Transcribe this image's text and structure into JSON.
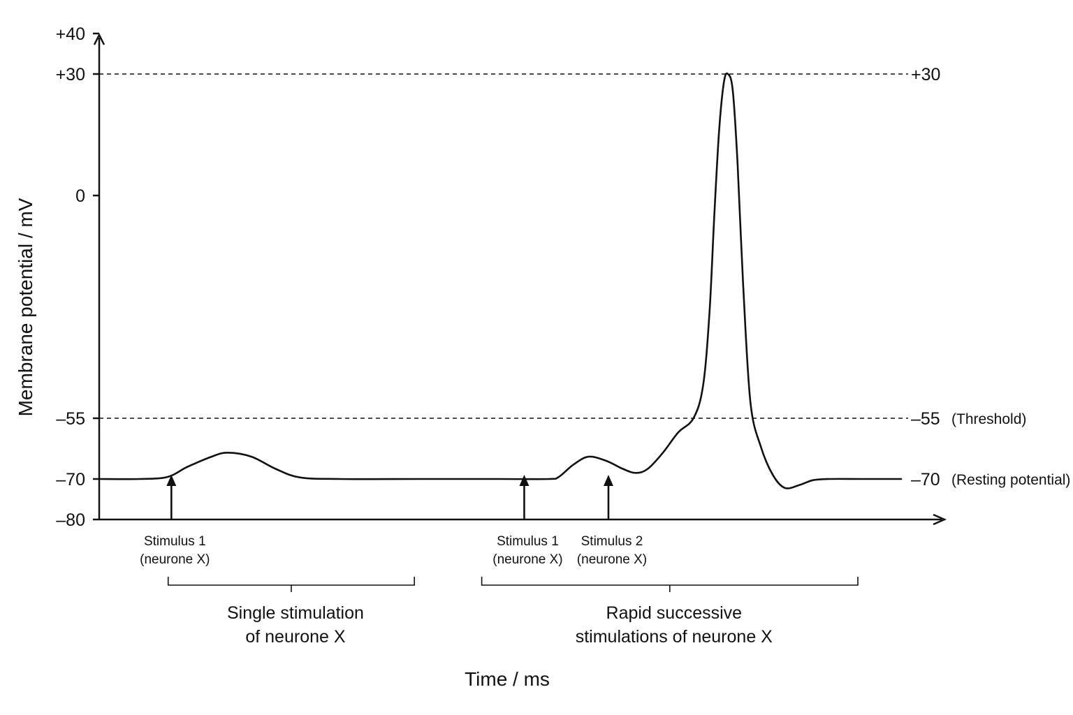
{
  "chart_data": {
    "type": "line",
    "title": "",
    "xlabel": "Time / ms",
    "ylabel": "Membrane potential / mV",
    "x_range": [
      0,
      100
    ],
    "ylim": [
      -80,
      40
    ],
    "y_ticks": [
      {
        "value": 40,
        "label": "+40"
      },
      {
        "value": 30,
        "label": "+30"
      },
      {
        "value": 0,
        "label": "0"
      },
      {
        "value": -55,
        "label": "–55"
      },
      {
        "value": -70,
        "label": "–70"
      },
      {
        "value": -80,
        "label": "–80"
      }
    ],
    "reference_lines": [
      {
        "value": 30,
        "label": "+30",
        "note": "",
        "dashed": true
      },
      {
        "value": -55,
        "label": "–55",
        "note": "(Threshold)",
        "dashed": true
      },
      {
        "value": -70,
        "label": "–70",
        "note": "(Resting potential)",
        "dashed": false
      }
    ],
    "series": [
      {
        "x": [
          0,
          5,
          8.5,
          11,
          14,
          16,
          19,
          22,
          25,
          30,
          40,
          50,
          56,
          57.3,
          59.1,
          61,
          63.2,
          65.3,
          66.9,
          68.4,
          70.3,
          72.2,
          74.1,
          75.3,
          76.1,
          76.7,
          77.3,
          77.9,
          78.4,
          79,
          79.6,
          80.3,
          81.2,
          82.5,
          84,
          85.5,
          87.3,
          89,
          91,
          95,
          100
        ],
        "y": [
          -70,
          -70,
          -69.5,
          -67,
          -64.5,
          -63.5,
          -64.5,
          -67.5,
          -69.6,
          -70,
          -70,
          -70,
          -70,
          -69.5,
          -66.5,
          -64.5,
          -65.5,
          -67.5,
          -68.5,
          -67.5,
          -63.5,
          -58.5,
          -55,
          -47,
          -29,
          -5,
          16,
          28,
          30,
          26,
          8,
          -22,
          -51,
          -62,
          -69,
          -72.2,
          -71.5,
          -70.3,
          -70,
          -70,
          -70
        ]
      }
    ],
    "stimuli": [
      {
        "x": 9,
        "label_line1": "Stimulus 1",
        "label_line2": "(neurone X)"
      },
      {
        "x": 53,
        "label_line1": "Stimulus 1",
        "label_line2": "(neurone X)"
      },
      {
        "x": 63.5,
        "label_line1": "Stimulus 2",
        "label_line2": "(neurone X)"
      }
    ],
    "groups": [
      {
        "x_start": 8.6,
        "x_end": 39.3,
        "line1": "Single stimulation",
        "line2": "of neurone X"
      },
      {
        "x_start": 47.7,
        "x_end": 94.6,
        "line1": "Rapid successive",
        "line2": "stimulations of neurone X"
      }
    ]
  }
}
